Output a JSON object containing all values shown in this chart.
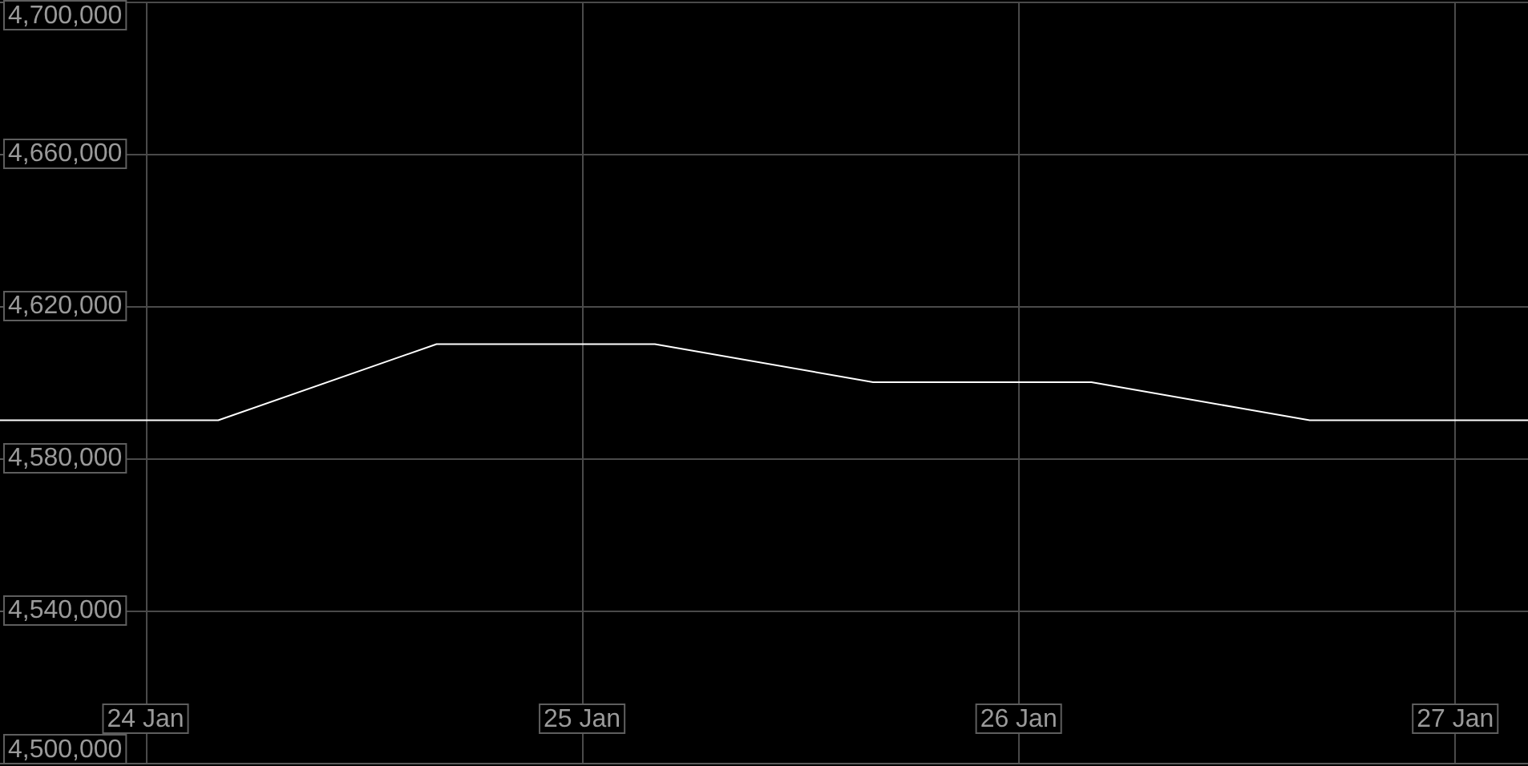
{
  "chart_data": {
    "type": "line",
    "x": [
      "--01-23T16:00",
      "--01-24T04:00",
      "--01-24T16:00",
      "--01-25T04:00",
      "--01-25T16:00",
      "--01-26T04:00",
      "--01-26T16:00",
      "--01-27T04:00"
    ],
    "values": [
      4590000,
      4590000,
      4610000,
      4610000,
      4600000,
      4600000,
      4590000,
      4590000
    ],
    "color": "#ffffff",
    "xlim": [
      "--01-23T16:00",
      "--01-27T04:00"
    ],
    "xticks": [
      {
        "value": "--01-24",
        "label": "24 Jan"
      },
      {
        "value": "--01-25",
        "label": "25 Jan"
      },
      {
        "value": "--01-26",
        "label": "26 Jan"
      },
      {
        "value": "--01-27",
        "label": "27 Jan"
      }
    ],
    "ylim": [
      4500000,
      4700000
    ],
    "yticks": [
      {
        "value": 4500000,
        "label": "4,500,000"
      },
      {
        "value": 4540000,
        "label": "4,540,000"
      },
      {
        "value": 4580000,
        "label": "4,580,000"
      },
      {
        "value": 4620000,
        "label": "4,620,000"
      },
      {
        "value": 4660000,
        "label": "4,660,000"
      },
      {
        "value": 4700000,
        "label": "4,700,000"
      }
    ],
    "grid": true,
    "marker": "none",
    "line_style": "solid"
  }
}
